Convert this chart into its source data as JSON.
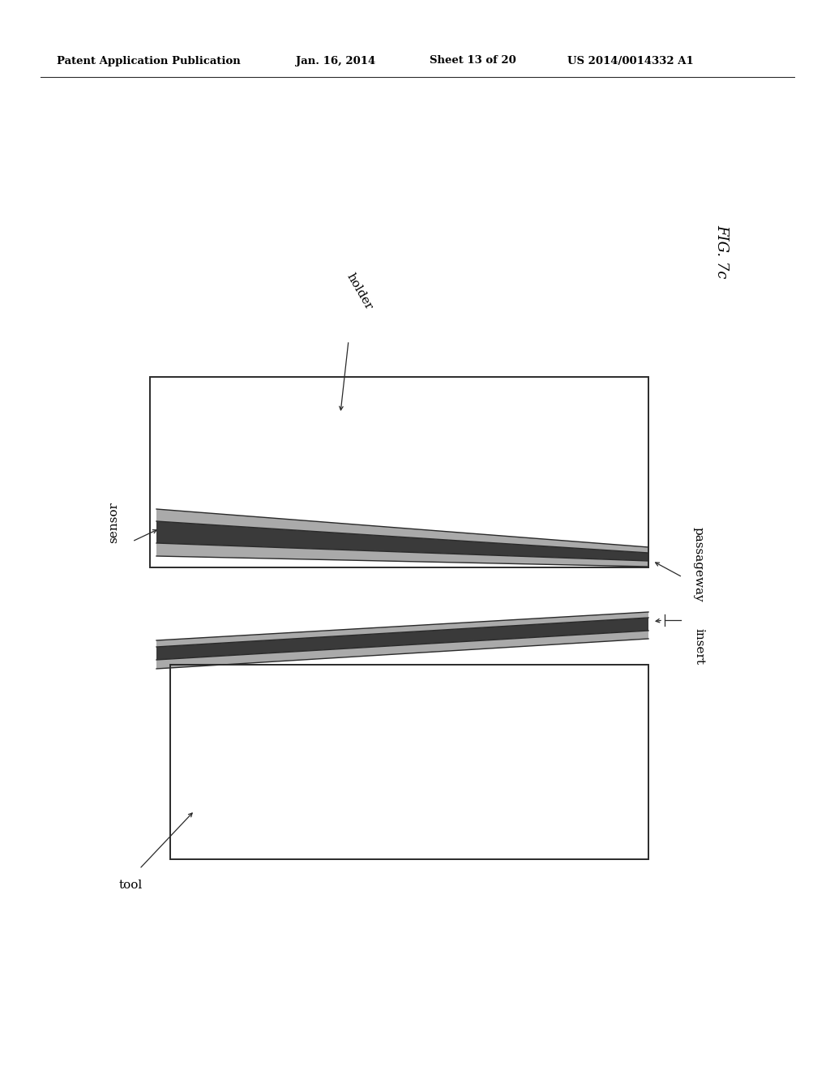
{
  "bg_color": "#ffffff",
  "header_text": "Patent Application Publication",
  "header_date": "Jan. 16, 2014",
  "header_sheet": "Sheet 13 of 20",
  "header_patent": "US 2014/0014332 A1",
  "fig_label": "FIG. 7c",
  "label_holder": "holder",
  "label_sensor": "sensor",
  "label_passageway": "passageway",
  "label_insert": "insert",
  "label_tool": "tool",
  "line_color": "#2a2a2a",
  "dark_fill": "#3a3a3a",
  "mid_fill": "#aaaaaa"
}
